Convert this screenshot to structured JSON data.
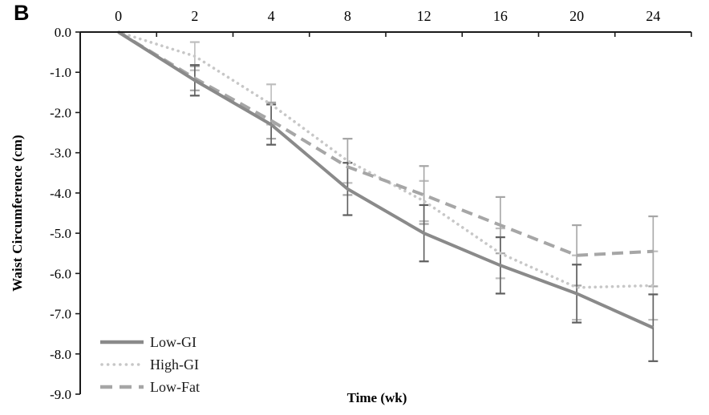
{
  "panel_label": "B",
  "chart_data": {
    "type": "line",
    "title": "",
    "xlabel": "Time (wk)",
    "ylabel": "Waist Circumference (cm)",
    "x_tick_labels": [
      "0",
      "2",
      "4",
      "8",
      "12",
      "16",
      "20",
      "24"
    ],
    "x_axis_position": "top",
    "y_tick_labels": [
      "0.0",
      "-1.0",
      "-2.0",
      "-3.0",
      "-4.0",
      "-5.0",
      "-6.0",
      "-7.0",
      "-8.0",
      "-9.0"
    ],
    "ylim": [
      -9.0,
      0.0
    ],
    "grid": false,
    "legend_position": "lower-left-inside",
    "axis_color": "#1a1a1a",
    "error_bars": true,
    "series": [
      {
        "name": "Low-GI",
        "style": "solid",
        "color": "#8a8a8a",
        "error_color": "#5e5e5e",
        "values": [
          0.0,
          -1.2,
          -2.3,
          -3.9,
          -5.0,
          -5.8,
          -6.5,
          -7.35
        ],
        "errors": [
          0.0,
          0.38,
          0.5,
          0.65,
          0.7,
          0.7,
          0.72,
          0.83
        ]
      },
      {
        "name": "High-GI",
        "style": "dotted",
        "color": "#c7c7c7",
        "error_color": "#bdbdbd",
        "values": [
          0.0,
          -0.6,
          -1.8,
          -3.2,
          -4.2,
          -5.5,
          -6.35,
          -6.3
        ],
        "errors": [
          0.0,
          0.35,
          0.5,
          0.55,
          0.5,
          0.62,
          0.8,
          0.85
        ]
      },
      {
        "name": "Low-Fat",
        "style": "dashed",
        "color": "#a6a6a6",
        "error_color": "#a6a6a6",
        "values": [
          0.0,
          -1.15,
          -2.2,
          -3.35,
          -4.05,
          -4.8,
          -5.55,
          -5.45
        ],
        "errors": [
          0.0,
          0.3,
          0.45,
          0.7,
          0.72,
          0.7,
          0.75,
          0.87
        ]
      }
    ]
  }
}
